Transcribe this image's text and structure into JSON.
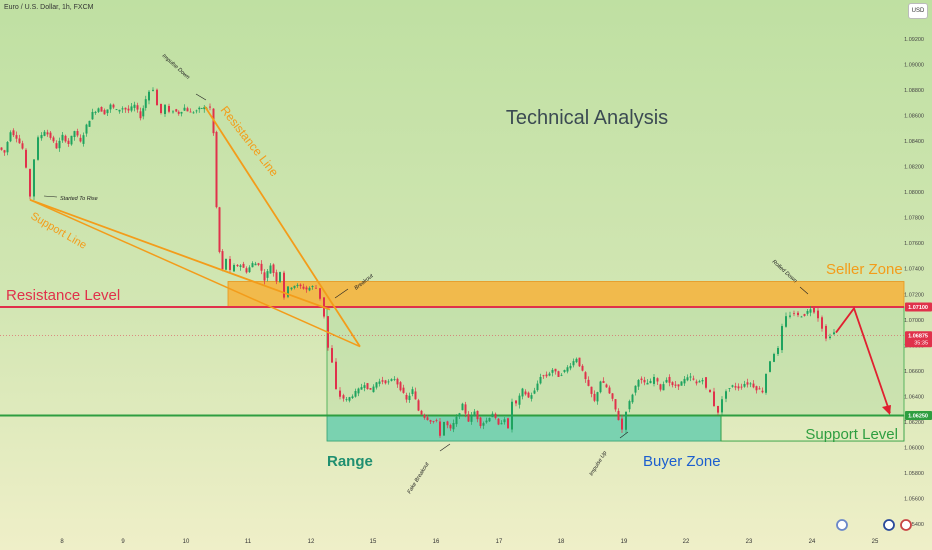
{
  "header": {
    "symbol": "Euro / U.S. Dollar, 1h, FXCM",
    "currency": "USD"
  },
  "chart_data": {
    "type": "candlestick",
    "title": "Technical Analysis",
    "symbol": "Euro / U.S. Dollar",
    "timeframe": "1h",
    "ylim": [
      1.0535,
      1.0935
    ],
    "y_ticks": [
      "1.09200",
      "1.09000",
      "1.08800",
      "1.08600",
      "1.08400",
      "1.08200",
      "1.08000",
      "1.07800",
      "1.07600",
      "1.07400",
      "1.07200",
      "1.07000",
      "1.06800",
      "1.06600",
      "1.06400",
      "1.06200",
      "1.06000",
      "1.05800",
      "1.05600",
      "1.05400"
    ],
    "x_ticks": [
      "8",
      "9",
      "10",
      "11",
      "12",
      "15",
      "16",
      "17",
      "18",
      "19",
      "22",
      "23",
      "24",
      "25"
    ],
    "price_labels": {
      "resistance": "1.07100",
      "current": "1.06875",
      "countdown": "35:35",
      "support": "1.06250"
    },
    "levels": {
      "resistance": 1.071,
      "support": 1.0625,
      "current": 1.06875
    },
    "zones": {
      "seller": [
        1.071,
        1.073
      ],
      "buyer": [
        1.0605,
        1.0625
      ]
    },
    "price_path": [
      [
        0,
        1.0835
      ],
      [
        6,
        1.0831
      ],
      [
        12,
        1.0848
      ],
      [
        18,
        1.0843
      ],
      [
        24,
        1.0834
      ],
      [
        28,
        1.0818
      ],
      [
        32,
        1.0797
      ],
      [
        36,
        1.0826
      ],
      [
        40,
        1.0842
      ],
      [
        46,
        1.0848
      ],
      [
        52,
        1.0843
      ],
      [
        58,
        1.0835
      ],
      [
        64,
        1.0844
      ],
      [
        70,
        1.0838
      ],
      [
        76,
        1.0848
      ],
      [
        82,
        1.0839
      ],
      [
        88,
        1.0852
      ],
      [
        94,
        1.0862
      ],
      [
        100,
        1.0866
      ],
      [
        106,
        1.0862
      ],
      [
        112,
        1.0868
      ],
      [
        118,
        1.0864
      ],
      [
        124,
        1.0866
      ],
      [
        130,
        1.0864
      ],
      [
        136,
        1.0868
      ],
      [
        142,
        1.0859
      ],
      [
        147,
        1.0873
      ],
      [
        151,
        1.0879
      ],
      [
        155,
        1.0881
      ],
      [
        159,
        1.0868
      ],
      [
        163,
        1.0862
      ],
      [
        167,
        1.0868
      ],
      [
        171,
        1.0862
      ],
      [
        175,
        1.0864
      ],
      [
        180,
        1.0862
      ],
      [
        186,
        1.0866
      ],
      [
        192,
        1.0862
      ],
      [
        198,
        1.0864
      ],
      [
        203,
        1.0866
      ],
      [
        208,
        1.0866
      ],
      [
        212,
        1.0866
      ],
      [
        215,
        1.0846
      ],
      [
        218,
        1.0788
      ],
      [
        221,
        1.0753
      ],
      [
        224,
        1.0739
      ],
      [
        228,
        1.0748
      ],
      [
        232,
        1.0738
      ],
      [
        236,
        1.0742
      ],
      [
        242,
        1.0743
      ],
      [
        248,
        1.0738
      ],
      [
        254,
        1.0744
      ],
      [
        260,
        1.0744
      ],
      [
        266,
        1.0732
      ],
      [
        272,
        1.0743
      ],
      [
        278,
        1.0731
      ],
      [
        282,
        1.0738
      ],
      [
        286,
        1.0718
      ],
      [
        290,
        1.0725
      ],
      [
        296,
        1.0727
      ],
      [
        302,
        1.0726
      ],
      [
        308,
        1.0724
      ],
      [
        314,
        1.0726
      ],
      [
        318,
        1.0725
      ],
      [
        322,
        1.0717
      ],
      [
        326,
        1.0703
      ],
      [
        330,
        1.0678
      ],
      [
        334,
        1.0666
      ],
      [
        338,
        1.0645
      ],
      [
        342,
        1.064
      ],
      [
        348,
        1.0637
      ],
      [
        354,
        1.0641
      ],
      [
        360,
        1.0645
      ],
      [
        366,
        1.065
      ],
      [
        372,
        1.0644
      ],
      [
        378,
        1.0651
      ],
      [
        384,
        1.0652
      ],
      [
        390,
        1.0651
      ],
      [
        396,
        1.0654
      ],
      [
        402,
        1.0646
      ],
      [
        408,
        1.0637
      ],
      [
        414,
        1.0645
      ],
      [
        420,
        1.0629
      ],
      [
        426,
        1.0624
      ],
      [
        432,
        1.0621
      ],
      [
        438,
        1.062
      ],
      [
        442,
        1.061
      ],
      [
        446,
        1.062
      ],
      [
        452,
        1.0614
      ],
      [
        458,
        1.0623
      ],
      [
        464,
        1.0633
      ],
      [
        470,
        1.0621
      ],
      [
        476,
        1.0628
      ],
      [
        482,
        1.0618
      ],
      [
        488,
        1.0621
      ],
      [
        494,
        1.0627
      ],
      [
        500,
        1.0617
      ],
      [
        506,
        1.0623
      ],
      [
        510,
        1.0614
      ],
      [
        514,
        1.0636
      ],
      [
        518,
        1.0634
      ],
      [
        524,
        1.0645
      ],
      [
        530,
        1.0639
      ],
      [
        536,
        1.0644
      ],
      [
        542,
        1.0656
      ],
      [
        548,
        1.0656
      ],
      [
        554,
        1.0661
      ],
      [
        560,
        1.0656
      ],
      [
        566,
        1.066
      ],
      [
        572,
        1.0665
      ],
      [
        578,
        1.067
      ],
      [
        584,
        1.0659
      ],
      [
        590,
        1.0647
      ],
      [
        596,
        1.0636
      ],
      [
        602,
        1.0652
      ],
      [
        608,
        1.0647
      ],
      [
        614,
        1.0637
      ],
      [
        620,
        1.0622
      ],
      [
        624,
        1.0614
      ],
      [
        628,
        1.0629
      ],
      [
        634,
        1.0642
      ],
      [
        640,
        1.0654
      ],
      [
        646,
        1.065
      ],
      [
        652,
        1.0651
      ],
      [
        656,
        1.0655
      ],
      [
        662,
        1.0646
      ],
      [
        668,
        1.0654
      ],
      [
        674,
        1.0648
      ],
      [
        680,
        1.0649
      ],
      [
        686,
        1.0653
      ],
      [
        692,
        1.0655
      ],
      [
        698,
        1.065
      ],
      [
        704,
        1.0654
      ],
      [
        708,
        1.0646
      ],
      [
        712,
        1.0643
      ],
      [
        716,
        1.0633
      ],
      [
        720,
        1.0628
      ],
      [
        724,
        1.0637
      ],
      [
        728,
        1.0645
      ],
      [
        734,
        1.0648
      ],
      [
        740,
        1.0647
      ],
      [
        746,
        1.065
      ],
      [
        752,
        1.065
      ],
      [
        758,
        1.0646
      ],
      [
        764,
        1.0644
      ],
      [
        768,
        1.0658
      ],
      [
        772,
        1.0668
      ],
      [
        776,
        1.0674
      ],
      [
        780,
        1.0677
      ],
      [
        784,
        1.0694
      ],
      [
        788,
        1.0702
      ],
      [
        792,
        1.0704
      ],
      [
        796,
        1.0705
      ],
      [
        800,
        1.0703
      ],
      [
        806,
        1.0704
      ],
      [
        812,
        1.0709
      ],
      [
        816,
        1.0707
      ],
      [
        820,
        1.0702
      ],
      [
        824,
        1.0694
      ],
      [
        828,
        1.0685
      ],
      [
        832,
        1.0688
      ],
      [
        836,
        1.069
      ]
    ],
    "projection": [
      [
        836,
        1.069
      ],
      [
        854,
        1.0709
      ],
      [
        890,
        1.0627
      ]
    ],
    "trendlines": [
      {
        "name": "Resistance Line",
        "from": [
          205,
          1.0867
        ],
        "to": [
          360,
          1.0679
        ]
      },
      {
        "name": "Support Line",
        "from": [
          30,
          1.0794
        ],
        "to": [
          330,
          1.0708
        ]
      }
    ],
    "annotations": {
      "title": "Technical Analysis",
      "resistance_level": "Resistance Level",
      "support_level": "Support Level",
      "seller_zone": "Seller Zone",
      "buyer_zone": "Buyer Zone",
      "range": "Range",
      "resistance_line": "Resistance Line",
      "support_line": "Support Line",
      "impulse_down": "Impulse Down",
      "started_to_rise": "Started To Rise",
      "breakout": "Breakout",
      "fake_breakout": "Fake Breakout",
      "impulse_up": "Impulse Up",
      "rolled_down": "Rolled Down"
    },
    "colors": {
      "bull": "#1fa35f",
      "bear": "#e0314b",
      "resistance": "#e0314b",
      "support": "#2e9e40",
      "orange": "#f39c1a",
      "seller_zone": "#f7b13a",
      "buyer_zone": "#6fcfae",
      "buyer_text": "#1c5fcf"
    }
  }
}
